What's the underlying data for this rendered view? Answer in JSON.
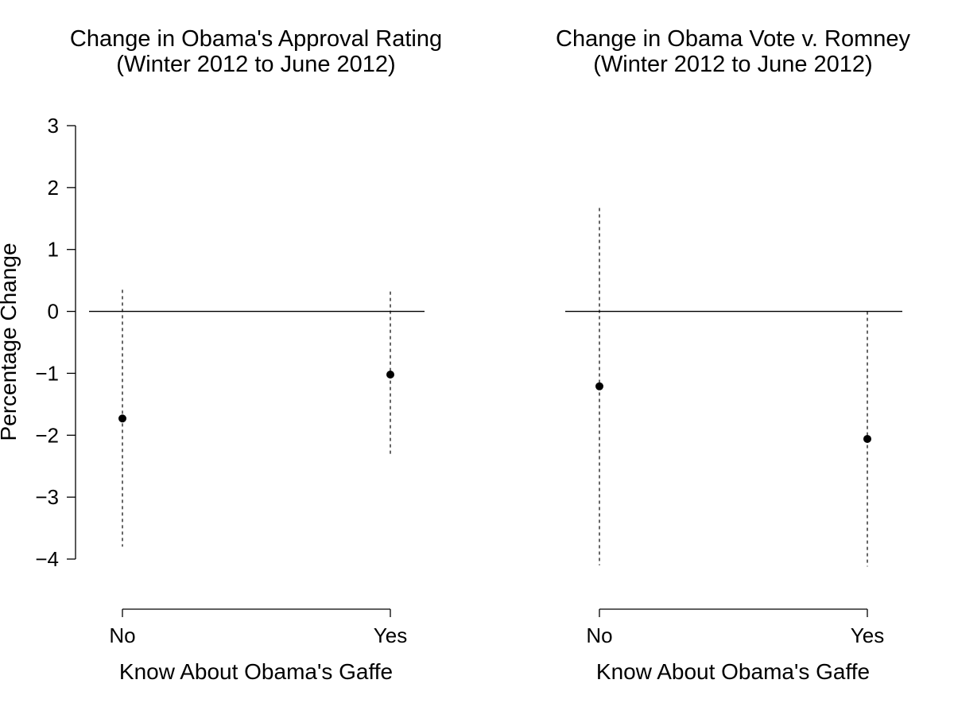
{
  "chart_data": [
    {
      "type": "scatter",
      "title": "Change in Obama's Approval Rating",
      "subtitle": "(Winter 2012 to June 2012)",
      "xlabel": "Know About Obama's Gaffe",
      "ylabel": "Percentage Change",
      "categories": [
        "No",
        "Yes"
      ],
      "values": [
        -1.73,
        -1.02
      ],
      "ci_low": [
        -3.8,
        -2.33
      ],
      "ci_high": [
        0.35,
        0.32
      ],
      "reference_line": 0,
      "ylim": [
        -4,
        3
      ],
      "yticks": [
        3,
        2,
        1,
        0,
        -1,
        -2,
        -3,
        -4
      ],
      "ytick_labels": [
        "3",
        "2",
        "1",
        "0",
        "−1",
        "−2",
        "−3",
        "−4"
      ],
      "show_yaxis": true,
      "grid": false
    },
    {
      "type": "scatter",
      "title": "Change in Obama Vote v. Romney",
      "subtitle": "(Winter 2012 to June 2012)",
      "xlabel": "Know About Obama's Gaffe",
      "ylabel": "",
      "categories": [
        "No",
        "Yes"
      ],
      "values": [
        -1.21,
        -2.06
      ],
      "ci_low": [
        -4.1,
        -4.12
      ],
      "ci_high": [
        1.67,
        0.0
      ],
      "reference_line": 0,
      "ylim": [
        -4,
        3
      ],
      "show_yaxis": false,
      "grid": false
    }
  ]
}
